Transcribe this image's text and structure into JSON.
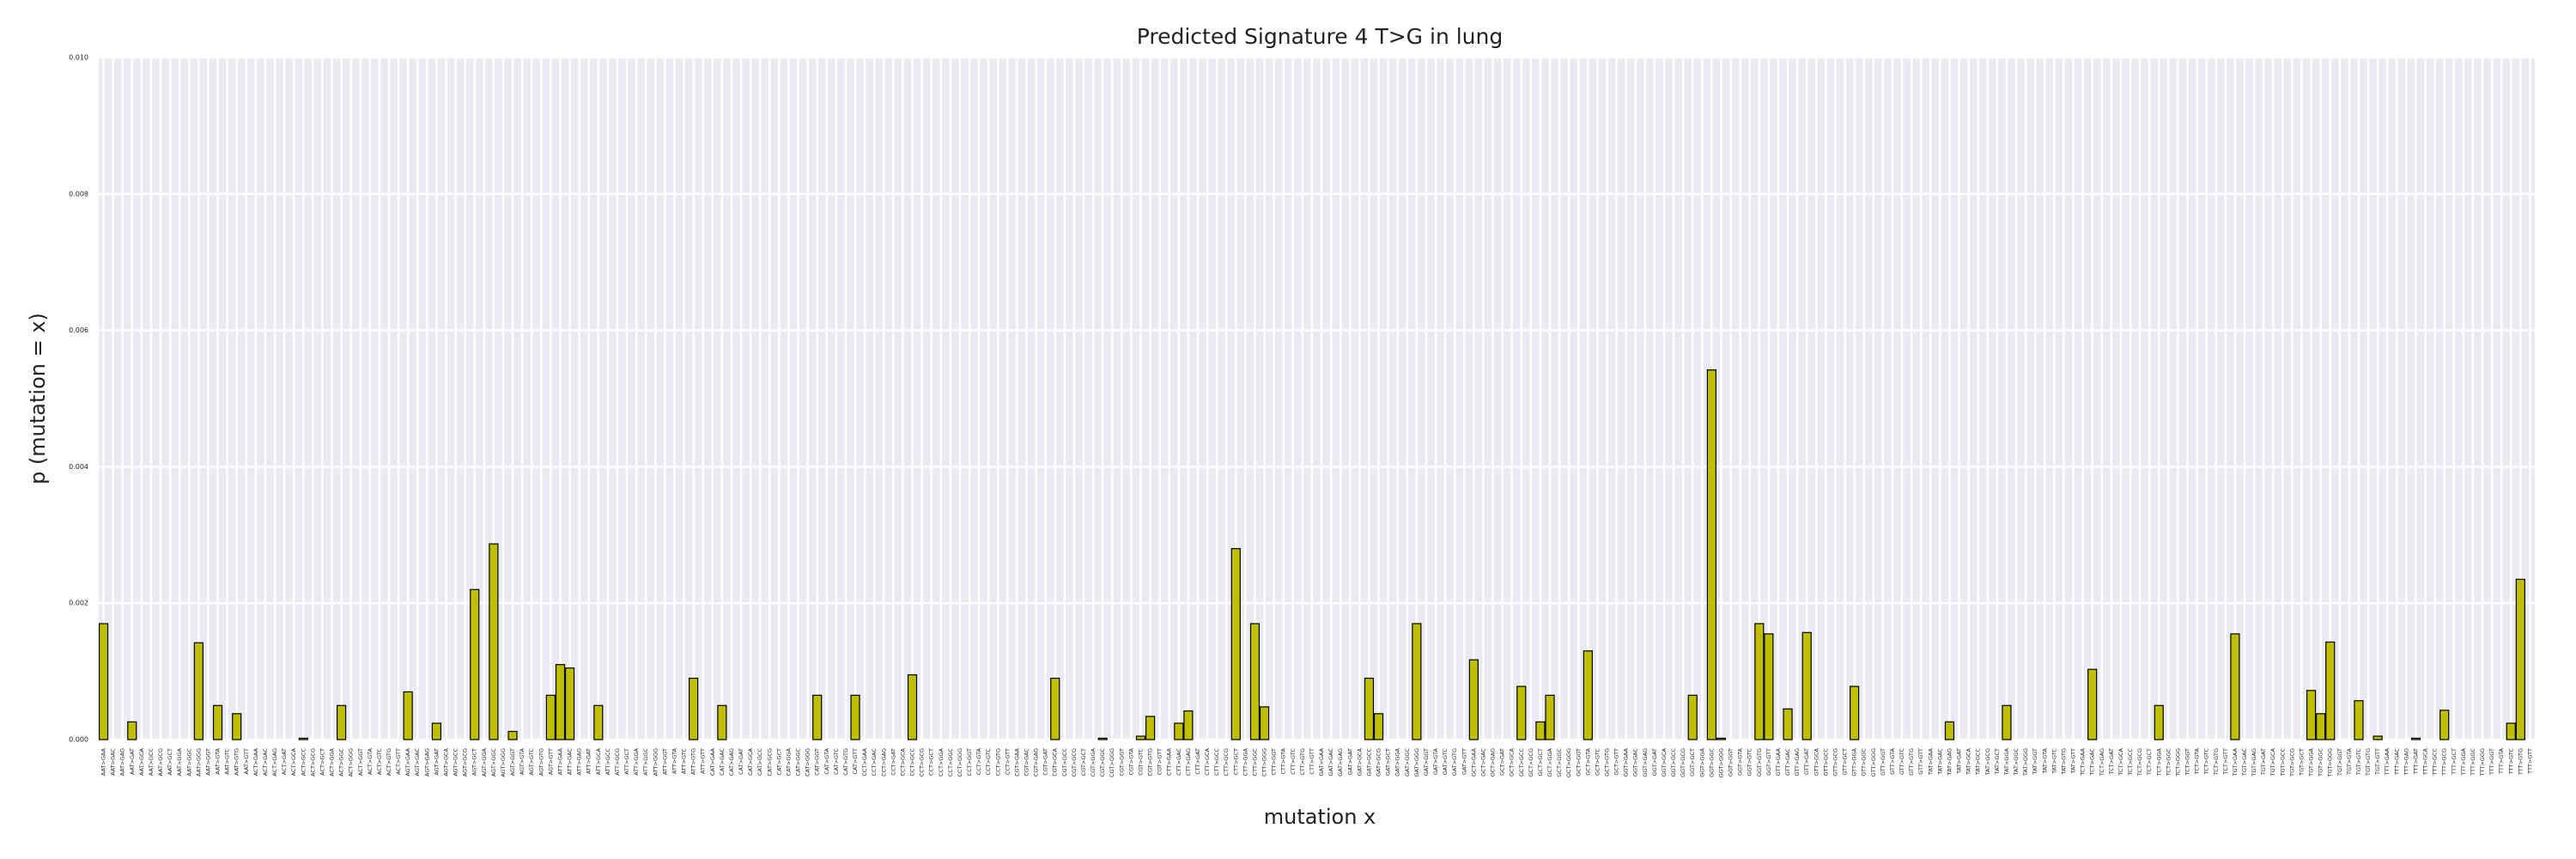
{
  "chart_data": {
    "type": "bar",
    "title": "Predicted Signature 4 T>G in lung",
    "x_label": "mutation x",
    "y_label": "p (mutation = x)",
    "color": "#bfbf00",
    "edge_color": "#000000",
    "grid": true,
    "ylim": [
      0,
      0.01
    ],
    "yticks": [
      {
        "value": 0,
        "label": "0.000"
      },
      {
        "value": 0.002,
        "label": "0.002"
      },
      {
        "value": 0.004,
        "label": "0.004"
      },
      {
        "value": 0.006,
        "label": "0.006"
      },
      {
        "value": 0.008,
        "label": "0.008"
      },
      {
        "value": 0.01,
        "label": "0.010"
      }
    ],
    "categories": [
      "AAT>GAA",
      "AAT>GAC",
      "AAT>GAG",
      "AAT>GAT",
      "AAT>GCA",
      "AAT>GCC",
      "AAT>GCG",
      "AAT>GCT",
      "AAT>GGA",
      "AAT>GGC",
      "AAT>GGG",
      "AAT>GGT",
      "AAT>GTA",
      "AAT>GTC",
      "AAT>GTG",
      "AAT>GTT",
      "ACT>GAA",
      "ACT>GAC",
      "ACT>GAG",
      "ACT>GAT",
      "ACT>GCA",
      "ACT>GCC",
      "ACT>GCG",
      "ACT>GCT",
      "ACT>GGA",
      "ACT>GGC",
      "ACT>GGG",
      "ACT>GGT",
      "ACT>GTA",
      "ACT>GTC",
      "ACT>GTG",
      "ACT>GTT",
      "AGT>GAA",
      "AGT>GAC",
      "AGT>GAG",
      "AGT>GAT",
      "AGT>GCA",
      "AGT>GCC",
      "AGT>GCG",
      "AGT>GCT",
      "AGT>GGA",
      "AGT>GGC",
      "AGT>GGG",
      "AGT>GGT",
      "AGT>GTA",
      "AGT>GTC",
      "AGT>GTG",
      "AGT>GTT",
      "ATT>GAA",
      "ATT>GAC",
      "ATT>GAG",
      "ATT>GAT",
      "ATT>GCA",
      "ATT>GCC",
      "ATT>GCG",
      "ATT>GCT",
      "ATT>GGA",
      "ATT>GGC",
      "ATT>GGG",
      "ATT>GGT",
      "ATT>GTA",
      "ATT>GTC",
      "ATT>GTG",
      "ATT>GTT",
      "CAT>GAA",
      "CAT>GAC",
      "CAT>GAG",
      "CAT>GAT",
      "CAT>GCA",
      "CAT>GCC",
      "CAT>GCG",
      "CAT>GCT",
      "CAT>GGA",
      "CAT>GGC",
      "CAT>GGG",
      "CAT>GGT",
      "CAT>GTA",
      "CAT>GTC",
      "CAT>GTG",
      "CAT>GTT",
      "CCT>GAA",
      "CCT>GAC",
      "CCT>GAG",
      "CCT>GAT",
      "CCT>GCA",
      "CCT>GCC",
      "CCT>GCG",
      "CCT>GCT",
      "CCT>GGA",
      "CCT>GGC",
      "CCT>GGG",
      "CCT>GGT",
      "CCT>GTA",
      "CCT>GTC",
      "CCT>GTG",
      "CCT>GTT",
      "CGT>GAA",
      "CGT>GAC",
      "CGT>GAG",
      "CGT>GAT",
      "CGT>GCA",
      "CGT>GCC",
      "CGT>GCG",
      "CGT>GCT",
      "CGT>GGA",
      "CGT>GGC",
      "CGT>GGG",
      "CGT>GGT",
      "CGT>GTA",
      "CGT>GTC",
      "CGT>GTG",
      "CGT>GTT",
      "CTT>GAA",
      "CTT>GAC",
      "CTT>GAG",
      "CTT>GAT",
      "CTT>GCA",
      "CTT>GCC",
      "CTT>GCG",
      "CTT>GCT",
      "CTT>GGA",
      "CTT>GGC",
      "CTT>GGG",
      "CTT>GGT",
      "CTT>GTA",
      "CTT>GTC",
      "CTT>GTG",
      "CTT>GTT",
      "GAT>GAA",
      "GAT>GAC",
      "GAT>GAG",
      "GAT>GAT",
      "GAT>GCA",
      "GAT>GCC",
      "GAT>GCG",
      "GAT>GCT",
      "GAT>GGA",
      "GAT>GGC",
      "GAT>GGG",
      "GAT>GGT",
      "GAT>GTA",
      "GAT>GTC",
      "GAT>GTG",
      "GAT>GTT",
      "GCT>GAA",
      "GCT>GAC",
      "GCT>GAG",
      "GCT>GAT",
      "GCT>GCA",
      "GCT>GCC",
      "GCT>GCG",
      "GCT>GCT",
      "GCT>GGA",
      "GCT>GGC",
      "GCT>GGG",
      "GCT>GGT",
      "GCT>GTA",
      "GCT>GTC",
      "GCT>GTG",
      "GCT>GTT",
      "GGT>GAA",
      "GGT>GAC",
      "GGT>GAG",
      "GGT>GAT",
      "GGT>GCA",
      "GGT>GCC",
      "GGT>GCG",
      "GGT>GCT",
      "GGT>GGA",
      "GGT>GGC",
      "GGT>GGG",
      "GGT>GGT",
      "GGT>GTA",
      "GGT>GTC",
      "GGT>GTG",
      "GGT>GTT",
      "GTT>GAA",
      "GTT>GAC",
      "GTT>GAG",
      "GTT>GAT",
      "GTT>GCA",
      "GTT>GCC",
      "GTT>GCG",
      "GTT>GCT",
      "GTT>GGA",
      "GTT>GGC",
      "GTT>GGG",
      "GTT>GGT",
      "GTT>GTA",
      "GTT>GTC",
      "GTT>GTG",
      "GTT>GTT",
      "TAT>GAA",
      "TAT>GAC",
      "TAT>GAG",
      "TAT>GAT",
      "TAT>GCA",
      "TAT>GCC",
      "TAT>GCG",
      "TAT>GCT",
      "TAT>GGA",
      "TAT>GGC",
      "TAT>GGG",
      "TAT>GGT",
      "TAT>GTA",
      "TAT>GTC",
      "TAT>GTG",
      "TAT>GTT",
      "TCT>GAA",
      "TCT>GAC",
      "TCT>GAG",
      "TCT>GAT",
      "TCT>GCA",
      "TCT>GCC",
      "TCT>GCG",
      "TCT>GCT",
      "TCT>GGA",
      "TCT>GGC",
      "TCT>GGG",
      "TCT>GGT",
      "TCT>GTA",
      "TCT>GTC",
      "TCT>GTG",
      "TCT>GTT",
      "TGT>GAA",
      "TGT>GAC",
      "TGT>GAG",
      "TGT>GAT",
      "TGT>GCA",
      "TGT>GCC",
      "TGT>GCG",
      "TGT>GCT",
      "TGT>GGA",
      "TGT>GGC",
      "TGT>GGG",
      "TGT>GGT",
      "TGT>GTA",
      "TGT>GTC",
      "TGT>GTG",
      "TGT>GTT",
      "TTT>GAA",
      "TTT>GAC",
      "TTT>GAG",
      "TTT>GAT",
      "TTT>GCA",
      "TTT>GCC",
      "TTT>GCG",
      "TTT>GCT",
      "TTT>GGA",
      "TTT>GGC",
      "TTT>GGG",
      "TTT>GGT",
      "TTT>GTA",
      "TTT>GTC",
      "TTT>GTG",
      "TTT>GTT"
    ],
    "values": [
      0.0017,
      0,
      0,
      0.00026,
      0,
      0,
      0,
      0,
      0,
      0,
      0.00142,
      0,
      0.0005,
      0,
      0.00038,
      0,
      0,
      0,
      0,
      0,
      0,
      2e-05,
      0,
      0,
      0,
      0.0005,
      0,
      0,
      0,
      0,
      0,
      0,
      0.0007,
      0,
      0,
      0.00024,
      0,
      0,
      0,
      0.0022,
      0,
      0.00287,
      0,
      0.00012,
      0,
      0,
      0,
      0.00065,
      0.0011,
      0.00105,
      0,
      0,
      0.0005,
      0,
      0,
      0,
      0,
      0,
      0,
      0,
      0,
      0,
      0.0009,
      0,
      0,
      0.0005,
      0,
      0,
      0,
      0,
      0,
      0,
      0,
      0,
      0,
      0.00065,
      0,
      0,
      0,
      0.00065,
      0,
      0,
      0,
      0,
      0,
      0.00095,
      0,
      0,
      0,
      0,
      0,
      0,
      0,
      0,
      0,
      0,
      0,
      0,
      0,
      0,
      0.0009,
      0,
      0,
      0,
      0,
      2e-05,
      0,
      0,
      0,
      5e-05,
      0.00034,
      0,
      0,
      0.00024,
      0.00042,
      0,
      0,
      0,
      0,
      0.0028,
      0,
      0.0017,
      0.00048,
      0,
      0,
      0,
      0,
      0,
      0,
      0,
      0,
      0,
      0,
      0.0009,
      0.00038,
      0,
      0,
      0,
      0.0017,
      0,
      0,
      0,
      0,
      0,
      0.00117,
      0,
      0,
      0,
      0,
      0.00078,
      0,
      0.00026,
      0.00065,
      0,
      0,
      0,
      0.0013,
      0,
      0,
      0,
      0,
      0,
      0,
      0,
      0,
      0,
      0,
      0.00065,
      0,
      0.00542,
      2e-05,
      0,
      0,
      0,
      0.0017,
      0.00155,
      0,
      0.00045,
      0,
      0.00157,
      0,
      0,
      0,
      0,
      0.00078,
      0,
      0,
      0,
      0,
      0,
      0,
      0,
      0,
      0,
      0.00026,
      0,
      0,
      0,
      0,
      0,
      0.0005,
      0,
      0,
      0,
      0,
      0,
      0,
      0,
      0,
      0.00103,
      0,
      0,
      0,
      0,
      0,
      0,
      0.0005,
      0,
      0,
      0,
      0,
      0,
      0,
      0,
      0.00155,
      0,
      0,
      0,
      0,
      0,
      0,
      0,
      0.00072,
      0.00038,
      0.00143,
      0,
      0,
      0.00057,
      0,
      5e-05,
      0,
      0,
      0,
      2e-05,
      0,
      0,
      0.00043,
      0,
      0,
      0,
      0,
      0,
      0,
      0.00024,
      0.00235,
      0
    ]
  }
}
